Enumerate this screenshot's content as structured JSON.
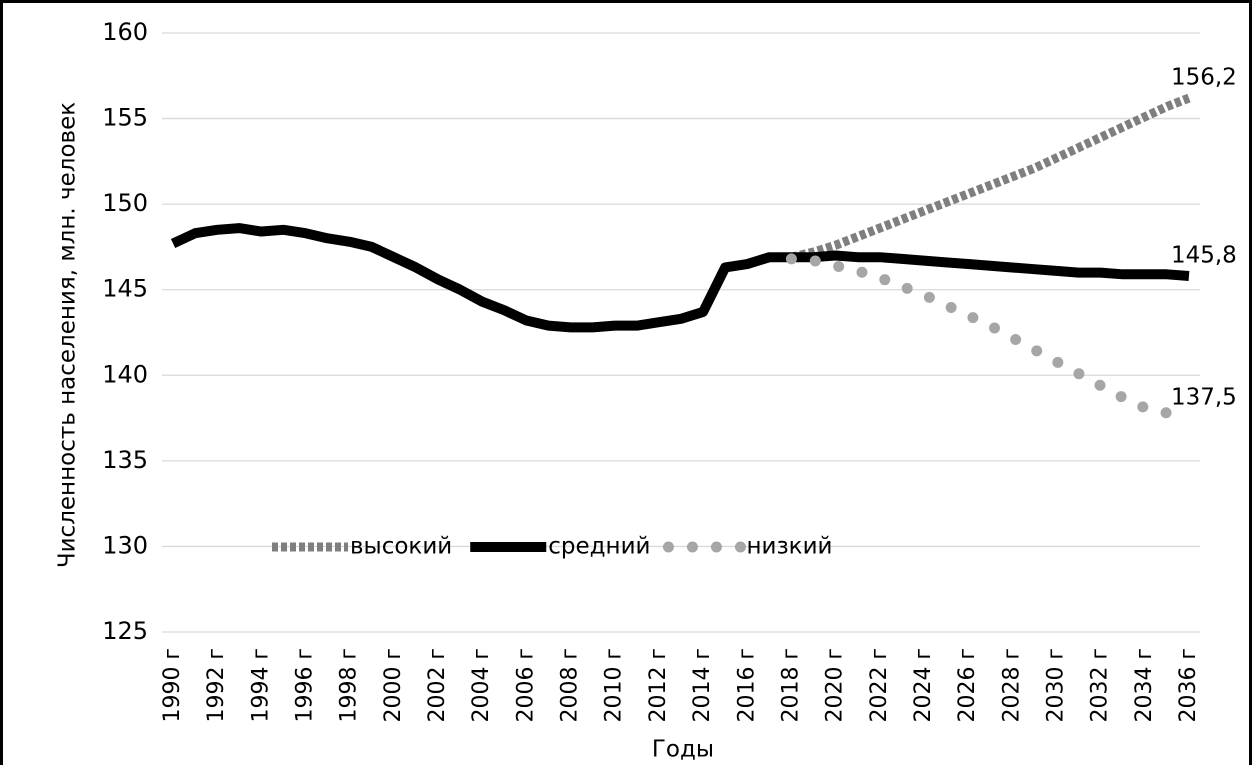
{
  "chart_data": {
    "type": "line",
    "x_label": "Годы",
    "y_label": "Численность населения, млн. человек",
    "categories": [
      "1990 г",
      null,
      "1992 г",
      null,
      "1994 г",
      null,
      "1996 г",
      null,
      "1998 г",
      null,
      "2000 г",
      null,
      "2002 г",
      null,
      "2004 г",
      null,
      "2006 г",
      null,
      "2008 г",
      null,
      "2010 г",
      null,
      "2012 г",
      null,
      "2014 г",
      null,
      "2016 г",
      null,
      "2018 г",
      null,
      "2020 г",
      null,
      "2022 г",
      null,
      "2024 г",
      null,
      "2026 г",
      null,
      "2028 г",
      null,
      "2030 г",
      null,
      "2032 г",
      null,
      "2034 г",
      null,
      "2036 г"
    ],
    "series": [
      {
        "name": "высокий",
        "color": "#7f7f7f",
        "line_style": "square-dot",
        "values": [
          null,
          null,
          null,
          null,
          null,
          null,
          null,
          null,
          null,
          null,
          null,
          null,
          null,
          null,
          null,
          null,
          null,
          null,
          null,
          null,
          null,
          null,
          null,
          null,
          null,
          null,
          null,
          null,
          146.9,
          147.2,
          147.6,
          148.1,
          148.6,
          149.1,
          149.6,
          150.1,
          150.6,
          151.1,
          151.6,
          152.1,
          152.7,
          153.3,
          153.9,
          154.5,
          155.1,
          155.7,
          156.2
        ],
        "value_labels": [
          null,
          null,
          null,
          null,
          null,
          null,
          null,
          null,
          null,
          null,
          null,
          null,
          null,
          null,
          null,
          null,
          null,
          null,
          null,
          null,
          null,
          null,
          null,
          null,
          null,
          null,
          null,
          null,
          null,
          null,
          null,
          null,
          null,
          null,
          null,
          null,
          null,
          null,
          null,
          null,
          null,
          null,
          null,
          null,
          null,
          null,
          "156,2"
        ]
      },
      {
        "name": "средний",
        "color": "#000000",
        "line_style": "solid",
        "values": [
          147.7,
          148.3,
          148.5,
          148.6,
          148.4,
          148.5,
          148.3,
          148.0,
          147.8,
          147.5,
          146.9,
          146.3,
          145.6,
          145.0,
          144.3,
          143.8,
          143.2,
          142.9,
          142.8,
          142.8,
          142.9,
          142.9,
          143.1,
          143.3,
          143.7,
          146.3,
          146.5,
          146.9,
          146.9,
          146.9,
          147.0,
          146.9,
          146.9,
          146.8,
          146.7,
          146.6,
          146.5,
          146.4,
          146.3,
          146.2,
          146.1,
          146.0,
          146.0,
          145.9,
          145.9,
          145.9,
          145.8
        ],
        "value_labels": [
          null,
          null,
          null,
          null,
          null,
          null,
          null,
          null,
          null,
          null,
          null,
          null,
          null,
          null,
          null,
          null,
          null,
          null,
          null,
          null,
          null,
          null,
          null,
          null,
          null,
          null,
          null,
          null,
          null,
          null,
          null,
          null,
          null,
          null,
          null,
          null,
          null,
          null,
          null,
          null,
          null,
          null,
          null,
          null,
          null,
          null,
          "145,8"
        ]
      },
      {
        "name": "низкий",
        "color": "#a6a6a6",
        "line_style": "round-dot",
        "values": [
          null,
          null,
          null,
          null,
          null,
          null,
          null,
          null,
          null,
          null,
          null,
          null,
          null,
          null,
          null,
          null,
          null,
          null,
          null,
          null,
          null,
          null,
          null,
          null,
          null,
          null,
          null,
          null,
          146.8,
          146.7,
          146.4,
          146.1,
          145.7,
          145.2,
          144.7,
          144.1,
          143.5,
          142.9,
          142.2,
          141.5,
          140.8,
          140.1,
          139.4,
          138.7,
          138.1,
          137.8,
          137.5
        ],
        "value_labels": [
          null,
          null,
          null,
          null,
          null,
          null,
          null,
          null,
          null,
          null,
          null,
          null,
          null,
          null,
          null,
          null,
          null,
          null,
          null,
          null,
          null,
          null,
          null,
          null,
          null,
          null,
          null,
          null,
          null,
          null,
          null,
          null,
          null,
          null,
          null,
          null,
          null,
          null,
          null,
          null,
          null,
          null,
          null,
          null,
          null,
          null,
          "137,5"
        ]
      }
    ],
    "ylim": [
      125,
      160
    ],
    "yticks": [
      125,
      130,
      135,
      140,
      145,
      150,
      155,
      160
    ],
    "grid": true,
    "legend": "inside-bottom-left"
  }
}
